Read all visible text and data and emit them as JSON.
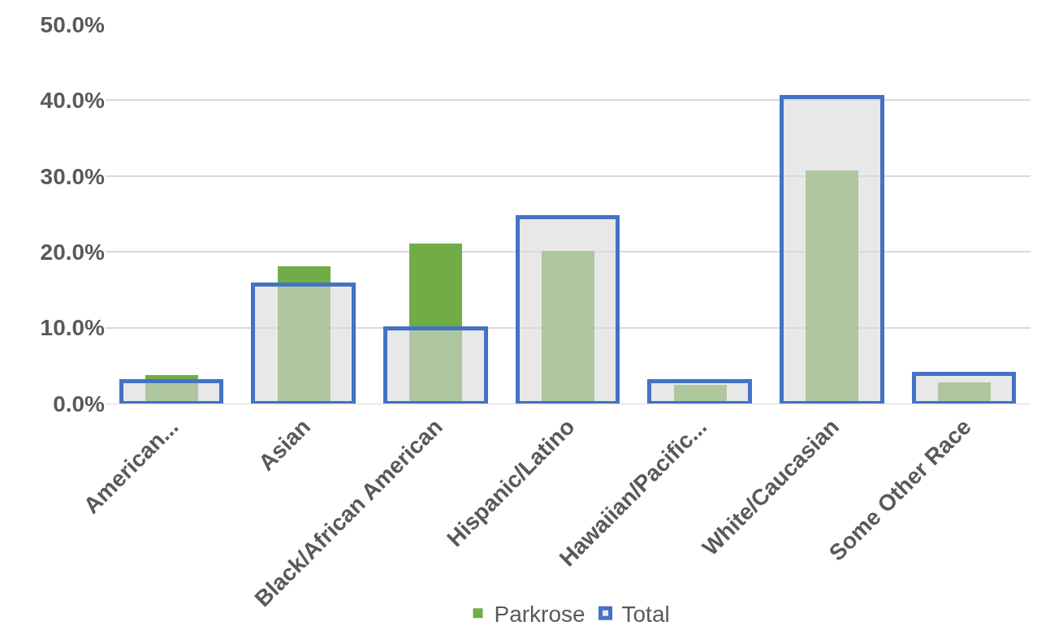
{
  "chart_data": {
    "type": "bar",
    "categories": [
      "American...",
      "Asian",
      "Black/African American",
      "Hispanic/Latino",
      "Hawaiian/Pacific...",
      "White/Caucasian",
      "Some Other Race"
    ],
    "series": [
      {
        "name": "Parkrose",
        "color": "#70ad47",
        "values": [
          3.7,
          18.1,
          21.1,
          20.1,
          2.5,
          30.7,
          2.8
        ]
      },
      {
        "name": "Total",
        "color": "#4472c4",
        "values": [
          2.9,
          15.6,
          9.8,
          24.5,
          2.9,
          40.4,
          3.9
        ]
      }
    ],
    "ylim": [
      0,
      50
    ],
    "yticks": [
      {
        "value": 0,
        "label": "0.0%"
      },
      {
        "value": 10,
        "label": "10.0%"
      },
      {
        "value": 20,
        "label": "20.0%"
      },
      {
        "value": 30,
        "label": "30.0%"
      },
      {
        "value": 40,
        "label": "40.0%"
      },
      {
        "value": 50,
        "label": "50.0%"
      }
    ],
    "grid": "y",
    "legend": "bottom"
  }
}
